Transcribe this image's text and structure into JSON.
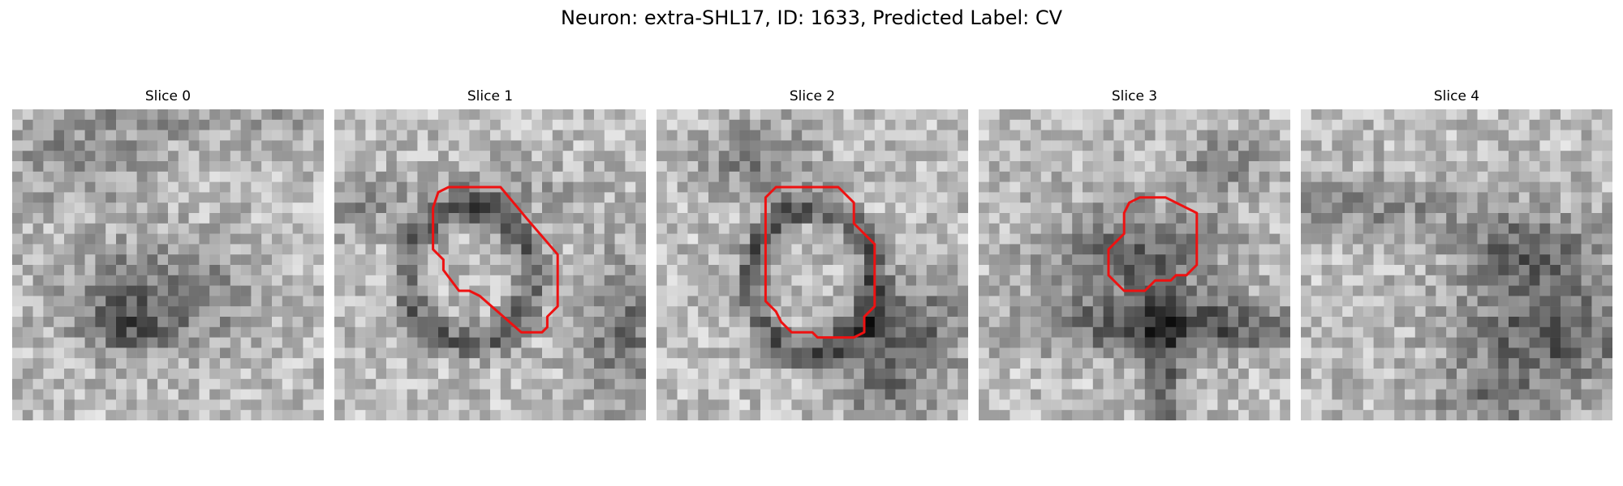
{
  "figure": {
    "title": "Neuron: extra-SHL17, ID: 1633, Predicted Label: CV"
  },
  "panels": [
    {
      "title": "Slice 0",
      "has_outline": false
    },
    {
      "title": "Slice 1",
      "has_outline": true
    },
    {
      "title": "Slice 2",
      "has_outline": true
    },
    {
      "title": "Slice 3",
      "has_outline": true
    },
    {
      "title": "Slice 4",
      "has_outline": false
    }
  ],
  "colors": {
    "outline": "#ee1111",
    "colormap": "gray"
  }
}
